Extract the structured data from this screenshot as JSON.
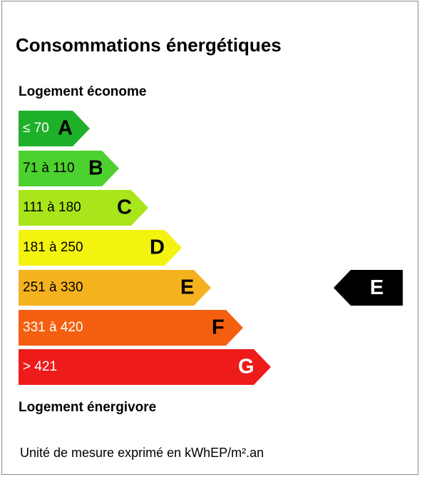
{
  "title": "Consommations énergétiques",
  "label_top": "Logement économe",
  "label_bottom": "Logement énergivore",
  "unit_note": "Unité de mesure exprimé en kWhEP/m².an",
  "classes": [
    {
      "range": "≤ 70",
      "letter": "A",
      "color": "#1fb02a"
    },
    {
      "range": "71 à 110",
      "letter": "B",
      "color": "#4cd12e"
    },
    {
      "range": "111 à 180",
      "letter": "C",
      "color": "#a8e51a"
    },
    {
      "range": "181 à 250",
      "letter": "D",
      "color": "#f3f30f"
    },
    {
      "range": "251 à 330",
      "letter": "E",
      "color": "#f5b21f"
    },
    {
      "range": "331 à 420",
      "letter": "F",
      "color": "#f45f10"
    },
    {
      "range": "> 421",
      "letter": "G",
      "color": "#ee1b1b"
    }
  ],
  "current": {
    "letter": "E",
    "color": "#000000"
  }
}
